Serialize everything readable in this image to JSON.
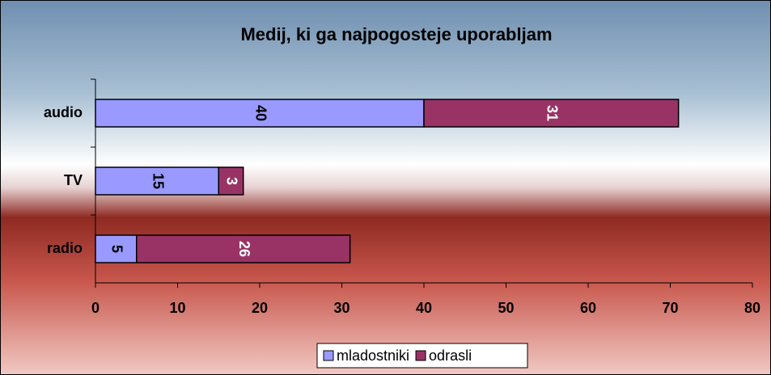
{
  "chart_data": {
    "type": "bar",
    "orientation": "horizontal",
    "stacked": true,
    "title": "Medij, ki ga najpogosteje uporabljam",
    "categories": [
      "audio",
      "TV",
      "radio"
    ],
    "series": [
      {
        "name": "mladostniki",
        "color": "#9999ff",
        "values": [
          40,
          15,
          5
        ]
      },
      {
        "name": "odrasli",
        "color": "#993366",
        "values": [
          31,
          3,
          26
        ]
      }
    ],
    "xlim": [
      0,
      80
    ],
    "xticks": [
      0,
      10,
      20,
      30,
      40,
      50,
      60,
      70,
      80
    ],
    "legend": "bottom"
  }
}
